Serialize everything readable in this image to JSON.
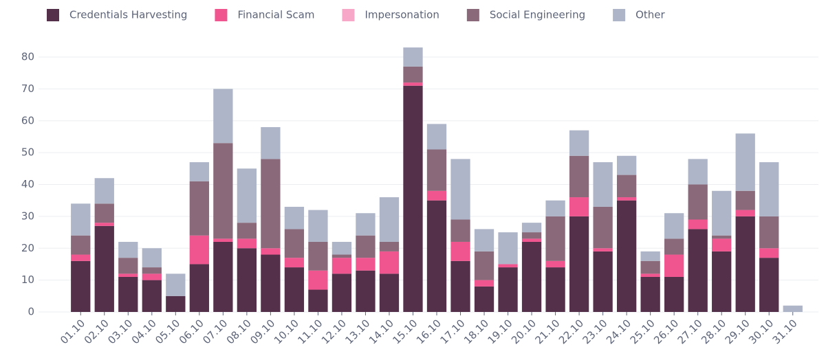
{
  "chart_data": {
    "type": "stacked_bar",
    "categories": [
      "01.10",
      "02.10",
      "03.10",
      "04.10",
      "05.10",
      "06.10",
      "07.10",
      "08.10",
      "09.10",
      "10.10",
      "11.10",
      "12.10",
      "13.10",
      "14.10",
      "15.10",
      "16.10",
      "17.10",
      "18.10",
      "19.10",
      "20.10",
      "21.10",
      "22.10",
      "23.10",
      "24.10",
      "25.10",
      "26.10",
      "27.10",
      "28.10",
      "29.10",
      "30.10",
      "31.10"
    ],
    "series": [
      {
        "name": "Credentials Harvesting",
        "color": "#55304a",
        "values": [
          16,
          27,
          11,
          10,
          5,
          15,
          22,
          20,
          18,
          14,
          7,
          12,
          13,
          12,
          71,
          35,
          16,
          8,
          14,
          22,
          14,
          30,
          19,
          35,
          11,
          11,
          26,
          19,
          30,
          17,
          0
        ]
      },
      {
        "name": "Financial Scam",
        "color": "#f0558f",
        "values": [
          2,
          1,
          1,
          2,
          0,
          9,
          1,
          3,
          2,
          3,
          6,
          5,
          4,
          7,
          1,
          3,
          6,
          2,
          1,
          1,
          2,
          6,
          1,
          1,
          1,
          7,
          3,
          4,
          2,
          3,
          0
        ]
      },
      {
        "name": "Impersonation",
        "color": "#f7a8c8",
        "values": [
          0,
          0,
          0,
          0,
          0,
          0,
          0,
          0,
          0,
          0,
          0,
          0,
          0,
          0,
          0,
          0,
          0,
          0,
          0,
          0,
          0,
          0,
          0,
          0,
          0,
          0,
          0,
          0,
          0,
          0,
          0
        ]
      },
      {
        "name": "Social Engineering",
        "color": "#8a6a7a",
        "values": [
          6,
          6,
          5,
          2,
          0,
          17,
          30,
          5,
          28,
          9,
          9,
          1,
          7,
          3,
          5,
          13,
          7,
          9,
          0,
          2,
          14,
          13,
          13,
          7,
          4,
          5,
          11,
          1,
          6,
          10,
          0
        ]
      },
      {
        "name": "Other",
        "color": "#aeb5c8",
        "values": [
          10,
          8,
          5,
          6,
          7,
          6,
          17,
          17,
          10,
          7,
          10,
          4,
          7,
          14,
          6,
          8,
          19,
          7,
          10,
          3,
          5,
          8,
          14,
          6,
          3,
          8,
          8,
          14,
          18,
          17,
          2
        ]
      }
    ],
    "ylim": [
      0,
      85
    ],
    "yticks": [
      0,
      10,
      20,
      30,
      40,
      50,
      60,
      70,
      80
    ],
    "grid": true,
    "legend": "top"
  }
}
